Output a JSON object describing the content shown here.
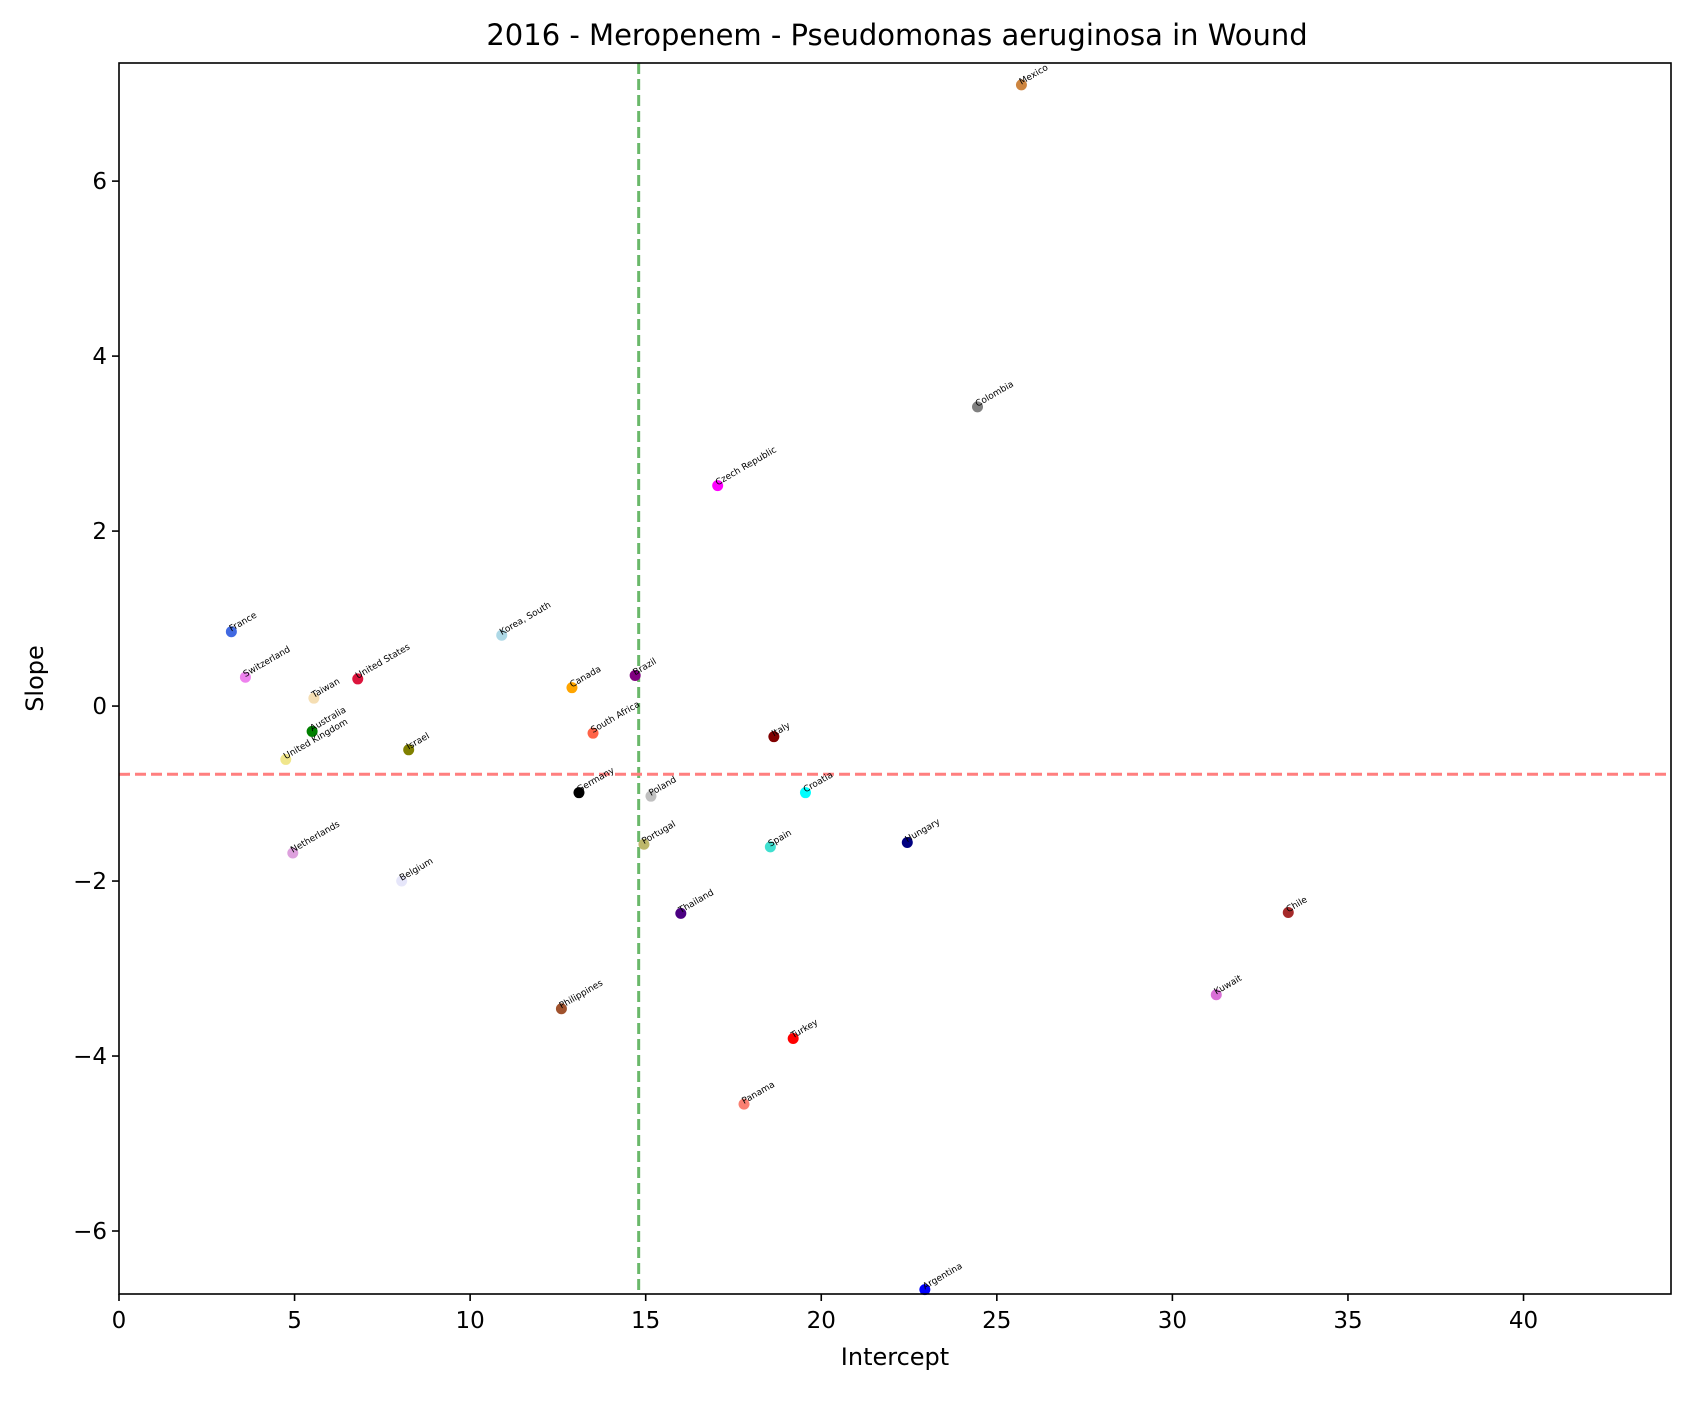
{
  "chart_data": {
    "type": "scatter",
    "title": "2016 - Meropenem - Pseudomonas aeruginosa in Wound",
    "xlabel": "Intercept",
    "ylabel": "Slope",
    "xlim": [
      0,
      44.2
    ],
    "ylim": [
      -6.72,
      7.35
    ],
    "xticks": [
      0,
      5,
      10,
      15,
      20,
      25,
      30,
      35,
      40
    ],
    "yticks": [
      -6,
      -4,
      -2,
      0,
      2,
      4,
      6
    ],
    "grid": false,
    "legend": "none",
    "reference_lines": [
      {
        "orientation": "vertical",
        "value": 14.8,
        "color": "#6ab86a",
        "style": "dashed"
      },
      {
        "orientation": "horizontal",
        "value": -0.78,
        "color": "#ff7f7f",
        "style": "dashed"
      }
    ],
    "points": [
      {
        "label": "Mexico",
        "x": 25.7,
        "y": 7.1,
        "color": "#cd853f"
      },
      {
        "label": "Colombia",
        "x": 24.45,
        "y": 3.42,
        "color": "#808080"
      },
      {
        "label": "Czech Republic",
        "x": 17.05,
        "y": 2.52,
        "color": "#ff00ff"
      },
      {
        "label": "France",
        "x": 3.2,
        "y": 0.85,
        "color": "#4169e1"
      },
      {
        "label": "Korea, South",
        "x": 10.9,
        "y": 0.81,
        "color": "#add8e6"
      },
      {
        "label": "Switzerland",
        "x": 3.6,
        "y": 0.33,
        "color": "#ee82ee"
      },
      {
        "label": "United States",
        "x": 6.8,
        "y": 0.31,
        "color": "#dc143c"
      },
      {
        "label": "Taiwan",
        "x": 5.55,
        "y": 0.09,
        "color": "#f5deb3"
      },
      {
        "label": "Canada",
        "x": 12.9,
        "y": 0.21,
        "color": "#ffa500"
      },
      {
        "label": "Brazil",
        "x": 14.7,
        "y": 0.35,
        "color": "#800080"
      },
      {
        "label": "Australia",
        "x": 5.5,
        "y": -0.29,
        "color": "#008000"
      },
      {
        "label": "South Africa",
        "x": 13.5,
        "y": -0.31,
        "color": "#ff6347"
      },
      {
        "label": "Italy",
        "x": 18.65,
        "y": -0.35,
        "color": "#800000"
      },
      {
        "label": "United Kingdom",
        "x": 4.75,
        "y": -0.61,
        "color": "#f0e68c"
      },
      {
        "label": "Israel",
        "x": 8.25,
        "y": -0.5,
        "color": "#808000"
      },
      {
        "label": "Germany",
        "x": 13.1,
        "y": -0.99,
        "color": "#000000"
      },
      {
        "label": "Poland",
        "x": 15.15,
        "y": -1.03,
        "color": "#c0c0c0"
      },
      {
        "label": "Croatia",
        "x": 19.55,
        "y": -0.99,
        "color": "#00ffff"
      },
      {
        "label": "Netherlands",
        "x": 4.95,
        "y": -1.68,
        "color": "#dda0dd"
      },
      {
        "label": "Portugal",
        "x": 14.95,
        "y": -1.58,
        "color": "#bdb76b"
      },
      {
        "label": "Spain",
        "x": 18.55,
        "y": -1.61,
        "color": "#40e0d0"
      },
      {
        "label": "Hungary",
        "x": 22.45,
        "y": -1.56,
        "color": "#000080"
      },
      {
        "label": "Belgium",
        "x": 8.05,
        "y": -2.0,
        "color": "#e6e6fa"
      },
      {
        "label": "Thailand",
        "x": 16.0,
        "y": -2.37,
        "color": "#4b0082"
      },
      {
        "label": "Chile",
        "x": 33.3,
        "y": -2.36,
        "color": "#a52a2a"
      },
      {
        "label": "Kuwait",
        "x": 31.25,
        "y": -3.3,
        "color": "#da70d6"
      },
      {
        "label": "Philippines",
        "x": 12.6,
        "y": -3.46,
        "color": "#a0522d"
      },
      {
        "label": "Turkey",
        "x": 19.2,
        "y": -3.8,
        "color": "#ff0000"
      },
      {
        "label": "Panama",
        "x": 17.8,
        "y": -4.55,
        "color": "#fa8072"
      },
      {
        "label": "Argentina",
        "x": 22.95,
        "y": -6.67,
        "color": "#0000ff"
      }
    ]
  }
}
